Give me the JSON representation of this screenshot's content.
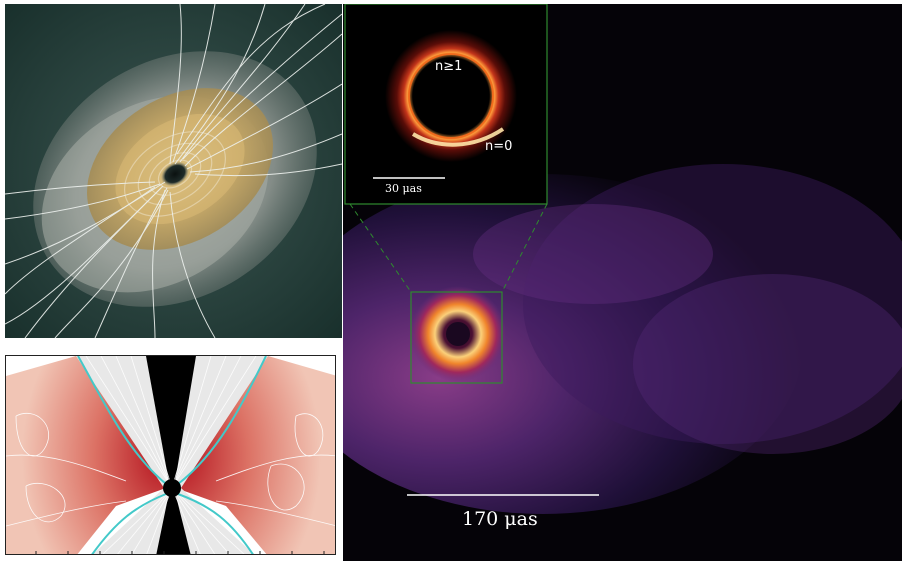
{
  "panels": {
    "gmhd_render": {
      "kind": "3d-render"
    },
    "field_slice": {
      "kind": "2d-slice"
    },
    "synthetic_image": {
      "kind": "simulated-image",
      "scale_bar_label": "170 μas",
      "inset": {
        "scale_bar_label": "30 μas",
        "label_photon_ring": "n≥1",
        "label_direct": "n=0"
      }
    }
  },
  "colors": {
    "image_background": "#050308",
    "inset_border": "#2f8a2f",
    "slice_red": "#c0202a",
    "field_lines": "#ffffff",
    "boundary": "#43c9c9"
  }
}
